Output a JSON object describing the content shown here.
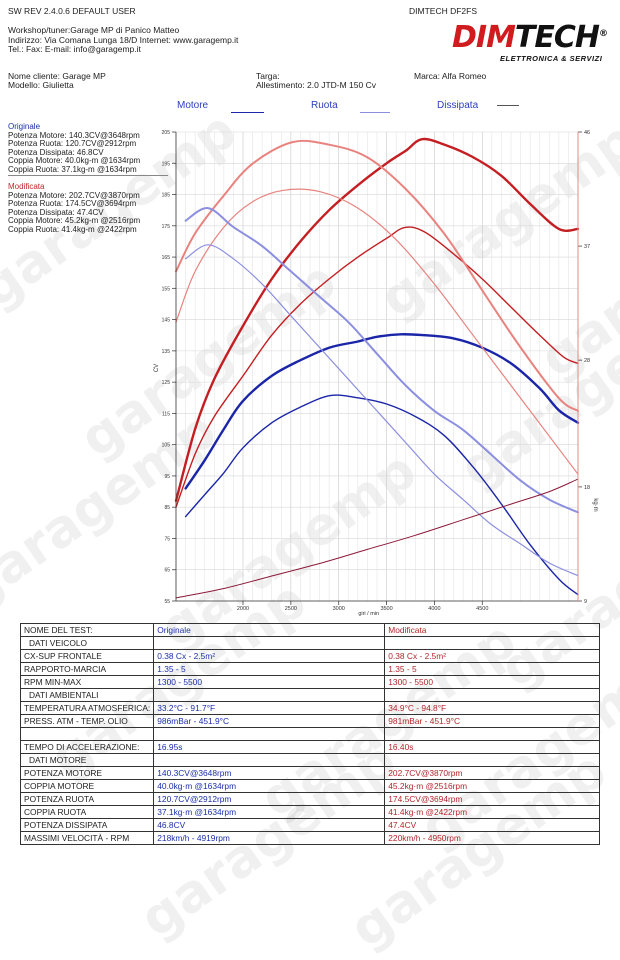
{
  "header": {
    "left_line": "SW REV 2.4.0.6   DEFAULT USER",
    "right_line": "DIMTECH DF2FS",
    "workshop": "Workshop/tuner:Garage MP di Panico Matteo",
    "address": "Indirizzo: Via Comana Lunga 18/D Internet: www.garagemp.it",
    "contacts": "Tel.:  Fax:  E-mail: info@garagemp.it"
  },
  "logo": {
    "main_a": "DIM",
    "main_b": "TECH",
    "sub": "ELETTRONICA & SERVIZI",
    "registered": "®"
  },
  "vehicle": {
    "cliente": "Nome cliente: Garage MP",
    "modello": "Modello: Giulietta",
    "targa": "Targa:",
    "allestimento": "Allestimento: 2.0 JTD-M 150 Cv",
    "marca": "Marca: Alfa Romeo"
  },
  "legend": {
    "motore": "Motore",
    "ruota": "Ruota",
    "dissipata": "Dissipata"
  },
  "summary": {
    "originale": {
      "title": "Originale",
      "lines": [
        "Potenza Motore: 140.3CV@3648rpm",
        "Potenza Ruota: 120.7CV@2912rpm",
        "Potenza Dissipata: 46.8CV",
        "Coppia Motore: 40.0kg-m @1634rpm",
        "Coppia Ruota: 37.1kg-m @1634rpm"
      ]
    },
    "modificata": {
      "title": "Modificata",
      "lines": [
        "Potenza Motore: 202.7CV@3870rpm",
        "Potenza Ruota: 174.5CV@3694rpm",
        "Potenza Dissipata: 47.4CV",
        "Coppia Motore: 45.2kg-m @2516rpm",
        "Coppia Ruota: 41.4kg-m @2422rpm"
      ]
    }
  },
  "chart_data": {
    "type": "line",
    "xlabel": "giri / min",
    "ylabel": "CV",
    "y2label": "kg·m",
    "xlim": [
      1300,
      5500
    ],
    "ylim": [
      55,
      205
    ],
    "y2lim": [
      9,
      46
    ],
    "x_ticks": [
      2000,
      2500,
      3000,
      3500,
      4000,
      4500
    ],
    "y_ticks": [
      55,
      65,
      75,
      85,
      95,
      105,
      115,
      125,
      135,
      145,
      155,
      165,
      175,
      185,
      195,
      205
    ],
    "y2_ticks": [
      9,
      18,
      28,
      37,
      46
    ],
    "grid": true,
    "colors": {
      "mod_power": "#c41e22",
      "mod_torque": "#e8837f",
      "orig_power": "#1a25a8",
      "orig_torque": "#8c8fe0",
      "dissipata": "#8c1a3a"
    },
    "series": [
      {
        "name": "Motore",
        "variant": "Modificata",
        "kind": "power",
        "axis": "left",
        "x": [
          1300,
          1500,
          1700,
          2000,
          2300,
          2600,
          2900,
          3200,
          3500,
          3700,
          3870,
          4100,
          4400,
          4700,
          5000,
          5300,
          5500
        ],
        "y": [
          87,
          110,
          126,
          143,
          158,
          170,
          180,
          188,
          195,
          199,
          202.7,
          201,
          197,
          191,
          182,
          174,
          174
        ]
      },
      {
        "name": "Ruota",
        "variant": "Modificata",
        "kind": "power",
        "axis": "left",
        "x": [
          1300,
          1500,
          1700,
          2000,
          2300,
          2600,
          2900,
          3200,
          3500,
          3694,
          3900,
          4200,
          4500,
          4800,
          5100,
          5350,
          5500
        ],
        "y": [
          85,
          102,
          114,
          127,
          140,
          150,
          158,
          165,
          171,
          174.5,
          173,
          166,
          158,
          149,
          140,
          133,
          131
        ]
      },
      {
        "name": "Motore",
        "variant": "Originale",
        "kind": "power",
        "axis": "left",
        "x": [
          1400,
          1600,
          1800,
          2000,
          2300,
          2600,
          2900,
          3200,
          3400,
          3648,
          3900,
          4200,
          4500,
          4800,
          5100,
          5300,
          5500
        ],
        "y": [
          91,
          100,
          110,
          119,
          127,
          132,
          136,
          138,
          139.5,
          140.3,
          140,
          139,
          136,
          131,
          123,
          116,
          112
        ]
      },
      {
        "name": "Ruota",
        "variant": "Originale",
        "kind": "power",
        "axis": "left",
        "x": [
          1400,
          1600,
          1800,
          2000,
          2300,
          2600,
          2912,
          3200,
          3500,
          3800,
          4100,
          4400,
          4700,
          5000,
          5300,
          5500
        ],
        "y": [
          82,
          89,
          96,
          104,
          112,
          117,
          120.7,
          120,
          118,
          114,
          108,
          98,
          86,
          73,
          62,
          57
        ]
      },
      {
        "name": "Motore",
        "variant": "Modificata",
        "kind": "torque",
        "axis": "right",
        "x": [
          1300,
          1500,
          1800,
          2100,
          2516,
          2900,
          3300,
          3700,
          4100,
          4500,
          4900,
          5300,
          5500
        ],
        "y": [
          35,
          38,
          41,
          43.5,
          45.2,
          45,
          44,
          41.5,
          38,
          33.5,
          29,
          25,
          24
        ]
      },
      {
        "name": "Ruota",
        "variant": "Modificata",
        "kind": "torque",
        "axis": "right",
        "x": [
          1300,
          1500,
          1800,
          2100,
          2422,
          2800,
          3200,
          3600,
          4000,
          4400,
          4800,
          5200,
          5500
        ],
        "y": [
          31,
          35,
          38.5,
          40.5,
          41.4,
          41.3,
          40,
          37.5,
          34,
          30,
          26,
          22,
          19
        ]
      },
      {
        "name": "Motore",
        "variant": "Originale",
        "kind": "torque",
        "axis": "right",
        "x": [
          1400,
          1634,
          1900,
          2200,
          2500,
          2800,
          3100,
          3400,
          3700,
          4000,
          4300,
          4600,
          4900,
          5200,
          5500
        ],
        "y": [
          39,
          40,
          38.5,
          37,
          35,
          33,
          31,
          28.5,
          26,
          24,
          22.5,
          20.5,
          18.5,
          17,
          16
        ]
      },
      {
        "name": "Ruota",
        "variant": "Originale",
        "kind": "torque",
        "axis": "right",
        "x": [
          1400,
          1634,
          1900,
          2200,
          2500,
          2800,
          3100,
          3400,
          3700,
          4000,
          4300,
          4600,
          4900,
          5200,
          5500
        ],
        "y": [
          36,
          37.1,
          36,
          34,
          31.5,
          29,
          26.5,
          24,
          21.5,
          19,
          17,
          15,
          13.5,
          12,
          11
        ]
      },
      {
        "name": "Dissipata",
        "variant": "Modificata",
        "kind": "loss",
        "axis": "left",
        "x": [
          1300,
          1800,
          2300,
          2800,
          3300,
          3800,
          4300,
          4800,
          5200,
          5500
        ],
        "y": [
          56,
          59,
          63,
          67,
          71.5,
          76,
          81,
          86,
          90,
          94
        ]
      }
    ]
  },
  "table": {
    "header": {
      "label": "NOME DEL TEST:",
      "orig": "Originale",
      "mod": "Modificata"
    },
    "rows": [
      {
        "label": "DATI VEICOLO",
        "orig": "",
        "mod": "",
        "section": true
      },
      {
        "label": "CX-SUP FRONTALE",
        "orig": "0.38 Cx - 2.5m²",
        "mod": "0.38 Cx - 2.5m²"
      },
      {
        "label": "RAPPORTO-MARCIA",
        "orig": "1.35 - 5",
        "mod": "1.35 - 5"
      },
      {
        "label": "RPM MIN-MAX",
        "orig": "1300 - 5500",
        "mod": "1300 - 5500"
      },
      {
        "label": "DATI AMBIENTALI",
        "orig": "",
        "mod": "",
        "section": true
      },
      {
        "label": "TEMPERATURA ATMOSFERICA:",
        "orig": "33.2°C - 91.7°F",
        "mod": "34.9°C - 94.8°F"
      },
      {
        "label": "PRESS. ATM - TEMP. OLIO",
        "orig": "986mBar - 451.9°C",
        "mod": "981mBar - 451.9°C"
      },
      {
        "label": "",
        "orig": "",
        "mod": "",
        "blank": true
      },
      {
        "label": "TEMPO DI ACCELERAZIONE:",
        "orig": "16.95s",
        "mod": "16.40s"
      },
      {
        "label": "DATI MOTORE",
        "orig": "",
        "mod": "",
        "section": true
      },
      {
        "label": "POTENZA MOTORE",
        "orig": "140.3CV@3648rpm",
        "mod": "202.7CV@3870rpm"
      },
      {
        "label": "COPPIA MOTORE",
        "orig": "40.0kg·m @1634rpm",
        "mod": "45.2kg·m @2516rpm"
      },
      {
        "label": "POTENZA RUOTA",
        "orig": "120.7CV@2912rpm",
        "mod": "174.5CV@3694rpm"
      },
      {
        "label": "COPPIA RUOTA",
        "orig": "37.1kg·m @1634rpm",
        "mod": "41.4kg·m @2422rpm"
      },
      {
        "label": "POTENZA DISSIPATA",
        "orig": "46.8CV",
        "mod": "47.4CV"
      },
      {
        "label": "MASSIMI VELOCITÀ - RPM",
        "orig": "218km/h - 4919rpm",
        "mod": "220km/h - 4950rpm"
      }
    ]
  },
  "watermark": "garagemp"
}
